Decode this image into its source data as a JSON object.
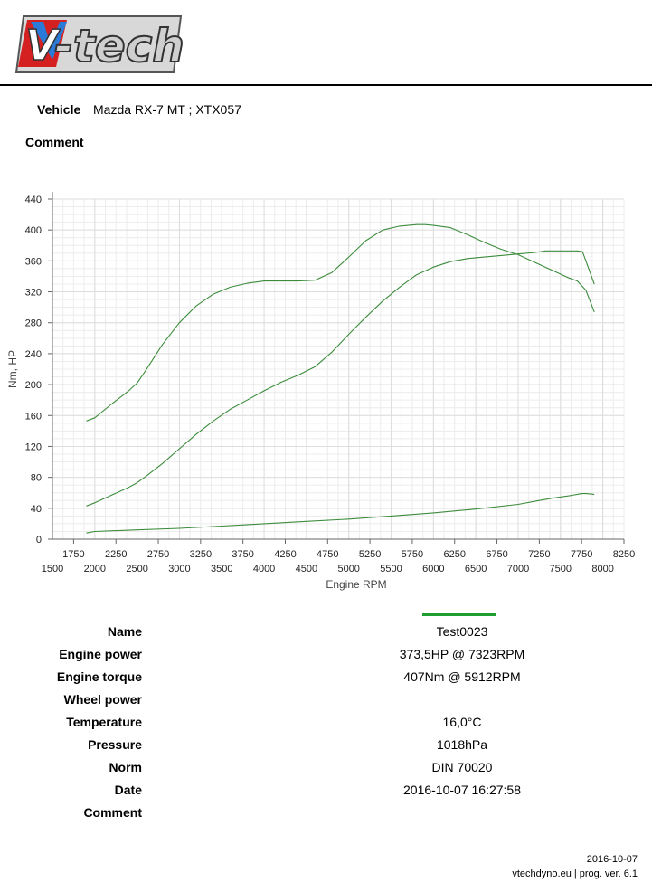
{
  "header": {
    "logo_text": "V-tech",
    "vehicle_label": "Vehicle",
    "vehicle_value": "Mazda RX-7 MT ; XTX057",
    "comment_label": "Comment"
  },
  "colors": {
    "curve": "#3c8c3c",
    "grid": "#dddddd",
    "axis": "#666666",
    "legend": "#1e9e2e"
  },
  "chart_data": {
    "type": "line",
    "xlabel": "Engine RPM",
    "ylabel": "Nm, HP",
    "xlim": [
      1500,
      8250
    ],
    "ylim": [
      0,
      440
    ],
    "x_ticks_major": [
      1500,
      2000,
      2500,
      3000,
      3500,
      4000,
      4500,
      5000,
      5500,
      6000,
      6500,
      7000,
      7500,
      8000
    ],
    "x_ticks_minor": [
      1750,
      2250,
      2750,
      3250,
      3750,
      4250,
      4750,
      5250,
      5750,
      6250,
      6750,
      7250,
      7750,
      8250
    ],
    "y_ticks": [
      0,
      40,
      80,
      120,
      160,
      200,
      240,
      280,
      320,
      360,
      400,
      440
    ],
    "grid": true,
    "series": [
      {
        "name": "Engine torque",
        "x": [
          1900,
          2000,
          2200,
          2400,
          2500,
          2600,
          2800,
          3000,
          3200,
          3400,
          3600,
          3800,
          4000,
          4200,
          4400,
          4600,
          4800,
          5000,
          5200,
          5400,
          5600,
          5800,
          5900,
          6000,
          6200,
          6400,
          6600,
          6800,
          7000,
          7200,
          7400,
          7600,
          7700,
          7800,
          7900
        ],
        "y": [
          153,
          157,
          175,
          192,
          202,
          218,
          252,
          280,
          302,
          317,
          326,
          331,
          334,
          334,
          334,
          335,
          345,
          365,
          386,
          400,
          405,
          407,
          407,
          406,
          403,
          394,
          384,
          375,
          368,
          358,
          348,
          338,
          334,
          322,
          294
        ]
      },
      {
        "name": "Engine power",
        "x": [
          1900,
          2000,
          2200,
          2400,
          2500,
          2600,
          2800,
          3000,
          3200,
          3400,
          3600,
          3800,
          4000,
          4200,
          4400,
          4600,
          4800,
          5000,
          5200,
          5400,
          5600,
          5800,
          6000,
          6200,
          6400,
          6600,
          6800,
          7000,
          7200,
          7323,
          7600,
          7700,
          7760,
          7800,
          7900
        ],
        "y": [
          43,
          47,
          57,
          67,
          73,
          81,
          98,
          117,
          136,
          153,
          168,
          180,
          192,
          203,
          212,
          223,
          242,
          265,
          287,
          308,
          326,
          342,
          352,
          359,
          363,
          365,
          367,
          369,
          371,
          373,
          373,
          373,
          372,
          360,
          330
        ]
      },
      {
        "name": "Wheel power",
        "x": [
          1900,
          2000,
          2500,
          3000,
          3500,
          4000,
          4500,
          5000,
          5500,
          6000,
          6500,
          7000,
          7200,
          7400,
          7600,
          7750,
          7800,
          7900
        ],
        "y": [
          8,
          10,
          12,
          14,
          17,
          20,
          23,
          26,
          30,
          34,
          39,
          45,
          49,
          53,
          56,
          59,
          59,
          58
        ]
      }
    ]
  },
  "results": [
    {
      "label": "Name",
      "value": "Test0023"
    },
    {
      "label": "Engine power",
      "value": "373,5HP @  7323RPM"
    },
    {
      "label": "Engine torque",
      "value": "407Nm @ 5912RPM"
    },
    {
      "label": "Wheel power",
      "value": ""
    },
    {
      "label": "Temperature",
      "value": "16,0°C"
    },
    {
      "label": "Pressure",
      "value": "1018hPa"
    },
    {
      "label": "Norm",
      "value": "DIN 70020"
    },
    {
      "label": "Date",
      "value": "2016-10-07 16:27:58"
    },
    {
      "label": "Comment",
      "value": ""
    }
  ],
  "footer": {
    "date": "2016-10-07",
    "program": "vtechdyno.eu | prog. ver. 6.1"
  }
}
